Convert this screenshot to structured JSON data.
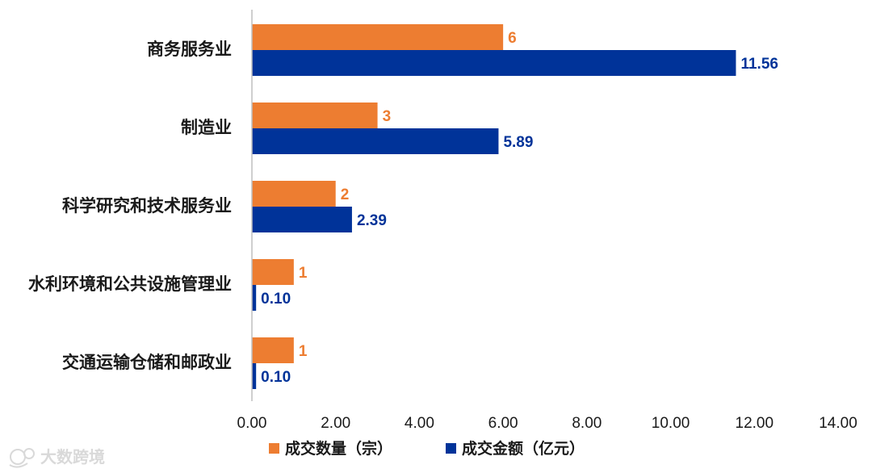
{
  "chart_data": {
    "type": "bar",
    "orientation": "horizontal",
    "categories": [
      "商务服务业",
      "制造业",
      "科学研究和技术服务业",
      "水利环境和公共设施管理业",
      "交通运输仓储和邮政业"
    ],
    "series": [
      {
        "name": "成交数量（宗）",
        "color": "#ed7d31",
        "values": [
          6,
          3,
          2,
          1,
          1
        ],
        "labels": [
          "6",
          "3",
          "2",
          "1",
          "1"
        ]
      },
      {
        "name": "成交金额（亿元）",
        "color": "#003399",
        "values": [
          11.56,
          5.89,
          2.39,
          0.1,
          0.1
        ],
        "labels": [
          "11.56",
          "5.89",
          "2.39",
          "0.10",
          "0.10"
        ]
      }
    ],
    "xlim": [
      0,
      14
    ],
    "x_ticks": [
      "0.00",
      "2.00",
      "4.00",
      "6.00",
      "8.00",
      "10.00",
      "12.00",
      "14.00"
    ],
    "grid": false,
    "legend_position": "bottom"
  },
  "watermark": {
    "text": "大数跨境",
    "icon": "brand-logo-icon"
  }
}
